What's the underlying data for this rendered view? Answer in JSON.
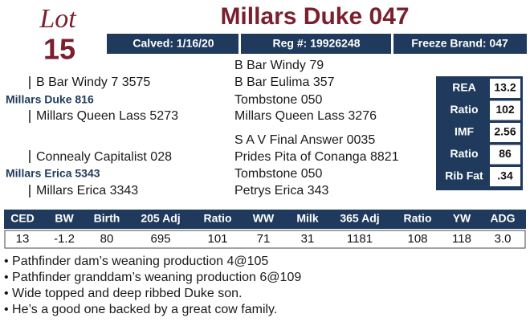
{
  "lot": {
    "label": "Lot",
    "number": "15"
  },
  "title": "Millars Duke 047",
  "info_bar": [
    "Calved: 1/16/20",
    "Reg #: 19926248",
    "Freeze Brand: 047"
  ],
  "pedigree": {
    "sire_side": {
      "grandsire": "B Bar Windy 7 3575",
      "sire": "Millars Duke 816",
      "granddam": "Millars Queen Lass 5273"
    },
    "dam_side": {
      "grandsire": "Connealy Capitalist 028",
      "dam": "Millars Erica 5343",
      "granddam": "Millars Erica 3343"
    },
    "outer": [
      "B Bar Windy 79",
      "B Bar Eulima 357",
      "Tombstone 050",
      "Millars Queen Lass 3276",
      "S A V Final Answer 0035",
      "Prides Pita of Conanga 8821",
      "Tombstone 050",
      "Petrys Erica 343"
    ]
  },
  "carcass": {
    "rows": [
      [
        "REA",
        "13.2"
      ],
      [
        "Ratio",
        "102"
      ],
      [
        "IMF",
        "2.56"
      ],
      [
        "Ratio",
        "86"
      ],
      [
        "Rib Fat",
        ".34"
      ]
    ]
  },
  "epd": {
    "headers": [
      "CED",
      "BW",
      "Birth",
      "205 Adj",
      "Ratio",
      "WW",
      "Milk",
      "365 Adj",
      "Ratio",
      "YW",
      "ADG"
    ],
    "values": [
      "13",
      "-1.2",
      "80",
      "695",
      "101",
      "71",
      "31",
      "1181",
      "108",
      "118",
      "3.0"
    ]
  },
  "notes": [
    "• Pathfinder dam’s weaning production 4@105",
    "• Pathfinder granddam’s weaning production 6@109",
    "• Wide topped and deep ribbed Duke son.",
    "• He’s a good one backed by a great cow family."
  ]
}
